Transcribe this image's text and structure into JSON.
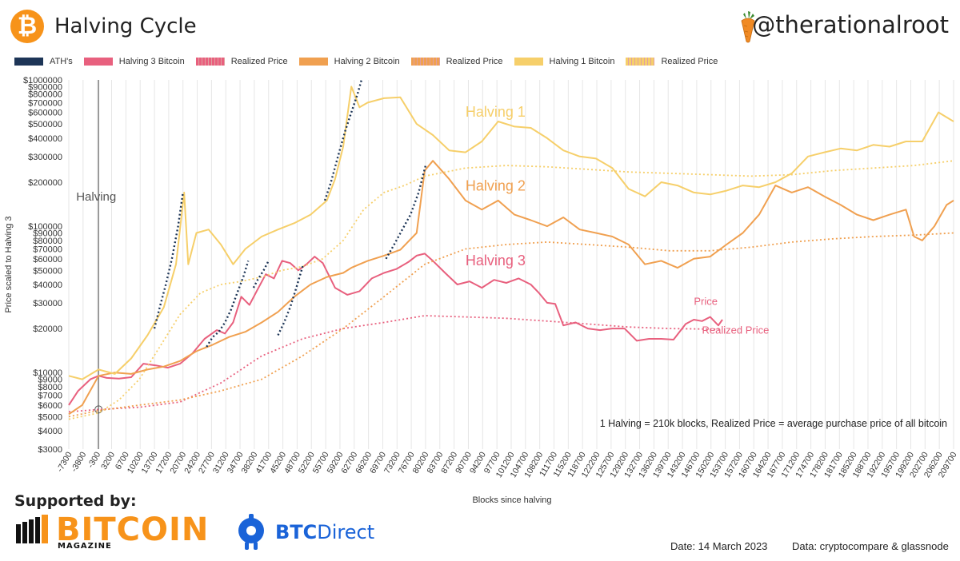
{
  "header": {
    "title": "Halving Cycle",
    "handle": "@therationalroot",
    "logo_symbol": "₿"
  },
  "legend": [
    {
      "label": "ATH's",
      "color": "#1d3557"
    },
    {
      "label": "Halving 3 Bitcoin",
      "color": "#e8607e"
    },
    {
      "label": "Realized Price",
      "color": "#e8607e",
      "dotted": true
    },
    {
      "label": "Halving 2 Bitcoin",
      "color": "#f0a050"
    },
    {
      "label": "Realized Price",
      "color": "#f0a050",
      "dotted": true
    },
    {
      "label": "Halving 1 Bitcoin",
      "color": "#f6cf6a"
    },
    {
      "label": "Realized Price",
      "color": "#f6cf6a",
      "dotted": true
    }
  ],
  "chart_data": {
    "type": "line",
    "title": "Halving Cycle",
    "xlabel": "Blocks since halving",
    "ylabel": "Price scaled to Halving 3",
    "yscale": "log",
    "ylim": [
      3000,
      1000000
    ],
    "xlim": [
      -7300,
      209700
    ],
    "grid": true,
    "y_ticks": [
      3000,
      4000,
      5000,
      6000,
      7000,
      8000,
      9000,
      10000,
      20000,
      30000,
      40000,
      50000,
      60000,
      70000,
      80000,
      90000,
      100000,
      200000,
      300000,
      400000,
      500000,
      600000,
      700000,
      800000,
      900000,
      1000000
    ],
    "y_tick_labels": [
      "$3000",
      "$4000",
      "$5000",
      "$6000",
      "$7000",
      "$8000",
      "$9000",
      "$10000",
      "$20000",
      "$30000",
      "$40000",
      "$50000",
      "$60000",
      "$70000",
      "$80000",
      "$90000",
      "$100000",
      "$200000",
      "$300000",
      "$400000",
      "$500000",
      "$600000",
      "$700000",
      "$800000",
      "$900000",
      "$1000000"
    ],
    "x_ticks": [
      -7300,
      -3800,
      -300,
      3200,
      6700,
      10200,
      13700,
      17200,
      20700,
      24200,
      27700,
      31200,
      34700,
      38200,
      41700,
      45200,
      48700,
      52200,
      55700,
      59200,
      62700,
      66200,
      69700,
      73200,
      76700,
      80200,
      83700,
      87200,
      90700,
      94200,
      97700,
      101200,
      104700,
      108200,
      111700,
      115200,
      118700,
      122200,
      125700,
      129200,
      132700,
      136200,
      139700,
      143200,
      146700,
      150200,
      153700,
      157200,
      160700,
      164200,
      167700,
      171200,
      174700,
      178200,
      181700,
      185200,
      188700,
      192200,
      195700,
      199200,
      202700,
      206200,
      209700
    ],
    "x_tick_labels": [
      "-7300",
      "-3800",
      "-300",
      "3200",
      "6700",
      "10200",
      "13700",
      "17200",
      "20700",
      "24200",
      "27700",
      "31200",
      "34700",
      "38200",
      "41700",
      "45200",
      "48700",
      "52200",
      "55700",
      "59200",
      "62700",
      "66200",
      "69700",
      "73200",
      "76700",
      "80200",
      "83700",
      "87200",
      "90700",
      "94200",
      "97700",
      "101200",
      "104700",
      "108200",
      "111700",
      "115200",
      "118700",
      "122200",
      "125700",
      "129200",
      "132700",
      "136200",
      "139700",
      "143200",
      "146700",
      "150200",
      "153700",
      "157200",
      "160700",
      "164200",
      "167700",
      "171200",
      "174700",
      "178200",
      "181700",
      "185200",
      "188700",
      "192200",
      "195700",
      "199200",
      "202700",
      "206200",
      "209700"
    ],
    "halving_marker": {
      "x": 0,
      "label": "Halving",
      "price": 5600
    },
    "series": [
      {
        "name": "Halving 3 Bitcoin",
        "color": "#e8607e",
        "style": "solid",
        "x": [
          -7300,
          -5000,
          -2000,
          0,
          2000,
          5000,
          8000,
          11000,
          14000,
          17000,
          20000,
          23000,
          26000,
          29000,
          31000,
          33000,
          35000,
          37000,
          39000,
          41000,
          43000,
          45000,
          47000,
          49000,
          51000,
          53000,
          55000,
          58000,
          61000,
          64000,
          67000,
          70000,
          73000,
          76000,
          78000,
          80000,
          82000,
          85000,
          88000,
          91000,
          94000,
          97000,
          100000,
          103000,
          106000,
          108000,
          110000,
          112000,
          114000,
          117000,
          120000,
          123000,
          126000,
          129000,
          132000,
          135000,
          138000,
          141000,
          144000,
          146000,
          148000,
          150000,
          152000,
          153000
        ],
        "values": [
          6000,
          7500,
          9000,
          9500,
          9200,
          9100,
          9300,
          11500,
          11200,
          10800,
          11500,
          13500,
          17000,
          19500,
          18500,
          22000,
          33000,
          29000,
          37000,
          47000,
          44000,
          58000,
          56000,
          50000,
          55000,
          62000,
          56000,
          38000,
          34000,
          36000,
          44000,
          48000,
          51000,
          57000,
          63000,
          65000,
          58000,
          48000,
          40000,
          42000,
          38000,
          43000,
          41000,
          44000,
          40000,
          35000,
          30000,
          29500,
          21000,
          22000,
          20000,
          19500,
          20000,
          20000,
          16500,
          17000,
          17000,
          16800,
          21500,
          23000,
          22500,
          24000,
          21000,
          23000
        ]
      },
      {
        "name": "Realized Price (H3)",
        "color": "#e8607e",
        "style": "dotted",
        "x": [
          -7300,
          0,
          10000,
          20000,
          30000,
          40000,
          50000,
          60000,
          70000,
          80000,
          90000,
          100000,
          110000,
          120000,
          130000,
          140000,
          150000,
          153000
        ],
        "values": [
          5400,
          5600,
          5800,
          6300,
          8500,
          13000,
          17000,
          20000,
          22000,
          24500,
          24000,
          23500,
          22500,
          21500,
          20500,
          20000,
          19800,
          19800
        ]
      },
      {
        "name": "Halving 2 Bitcoin",
        "color": "#f0a050",
        "style": "solid",
        "x": [
          -7300,
          -4000,
          0,
          4000,
          8000,
          12000,
          16000,
          20000,
          24000,
          28000,
          32000,
          36000,
          40000,
          44000,
          48000,
          52000,
          56000,
          60000,
          62000,
          64000,
          66000,
          70000,
          74000,
          78000,
          80000,
          82000,
          86000,
          90000,
          94000,
          98000,
          102000,
          106000,
          110000,
          114000,
          118000,
          122000,
          126000,
          130000,
          134000,
          138000,
          142000,
          146000,
          150000,
          154000,
          158000,
          162000,
          166000,
          170000,
          174000,
          178000,
          182000,
          186000,
          190000,
          194000,
          198000,
          200000,
          202000,
          205000,
          208000,
          209700
        ],
        "values": [
          5200,
          6000,
          9500,
          10000,
          9800,
          10500,
          11000,
          12000,
          14000,
          15500,
          17500,
          19000,
          22000,
          26000,
          33000,
          40000,
          45000,
          48000,
          52000,
          55000,
          58000,
          63000,
          69000,
          90000,
          240000,
          280000,
          210000,
          150000,
          130000,
          150000,
          120000,
          110000,
          100000,
          115000,
          95000,
          90000,
          85000,
          75000,
          55000,
          58000,
          52000,
          60000,
          62000,
          75000,
          90000,
          120000,
          190000,
          170000,
          185000,
          160000,
          140000,
          120000,
          110000,
          120000,
          130000,
          85000,
          80000,
          100000,
          140000,
          150000
        ]
      },
      {
        "name": "Realized Price (H2)",
        "color": "#f0a050",
        "style": "dotted",
        "x": [
          -7300,
          0,
          10000,
          20000,
          30000,
          40000,
          50000,
          60000,
          70000,
          80000,
          90000,
          100000,
          110000,
          120000,
          130000,
          140000,
          150000,
          160000,
          170000,
          180000,
          190000,
          200000,
          209700
        ],
        "values": [
          5000,
          5500,
          6000,
          6500,
          7500,
          9000,
          13000,
          20000,
          33000,
          55000,
          70000,
          75000,
          78000,
          75000,
          72000,
          68000,
          68000,
          72000,
          78000,
          82000,
          85000,
          87000,
          90000
        ]
      },
      {
        "name": "Halving 1 Bitcoin",
        "color": "#f6cf6a",
        "style": "solid",
        "x": [
          -7300,
          -4000,
          0,
          4000,
          8000,
          12000,
          16000,
          19000,
          21000,
          22000,
          24000,
          27000,
          30000,
          33000,
          36000,
          40000,
          44000,
          48000,
          52000,
          56000,
          58000,
          60000,
          62000,
          64000,
          66000,
          70000,
          74000,
          78000,
          82000,
          86000,
          90000,
          94000,
          98000,
          102000,
          106000,
          110000,
          114000,
          118000,
          122000,
          126000,
          130000,
          134000,
          138000,
          142000,
          146000,
          150000,
          154000,
          158000,
          162000,
          166000,
          170000,
          174000,
          178000,
          182000,
          186000,
          190000,
          194000,
          198000,
          202000,
          206000,
          209700
        ],
        "values": [
          9500,
          9000,
          10500,
          9800,
          12500,
          18000,
          28000,
          55000,
          170000,
          55000,
          90000,
          95000,
          75000,
          55000,
          70000,
          85000,
          95000,
          105000,
          120000,
          150000,
          210000,
          350000,
          900000,
          650000,
          700000,
          750000,
          760000,
          500000,
          420000,
          330000,
          320000,
          380000,
          520000,
          480000,
          470000,
          400000,
          330000,
          300000,
          290000,
          250000,
          180000,
          160000,
          200000,
          190000,
          170000,
          165000,
          175000,
          190000,
          185000,
          200000,
          230000,
          300000,
          320000,
          340000,
          330000,
          360000,
          350000,
          380000,
          380000,
          600000,
          520000
        ]
      },
      {
        "name": "Realized Price (H1)",
        "color": "#f6cf6a",
        "style": "dotted",
        "x": [
          -7300,
          0,
          5000,
          10000,
          15000,
          20000,
          25000,
          30000,
          35000,
          40000,
          45000,
          50000,
          55000,
          60000,
          65000,
          70000,
          75000,
          80000,
          90000,
          100000,
          110000,
          120000,
          130000,
          140000,
          150000,
          160000,
          170000,
          180000,
          190000,
          200000,
          209700
        ],
        "values": [
          4800,
          5300,
          6500,
          9000,
          15000,
          25000,
          35000,
          40000,
          42000,
          45000,
          50000,
          53000,
          60000,
          80000,
          130000,
          170000,
          190000,
          220000,
          250000,
          260000,
          255000,
          245000,
          235000,
          230000,
          225000,
          220000,
          225000,
          240000,
          250000,
          260000,
          280000
        ]
      }
    ],
    "ath_segments": [
      {
        "x": [
          13700,
          15000,
          16500,
          18000,
          19500,
          20700
        ],
        "values": [
          20000,
          28000,
          40000,
          60000,
          100000,
          170000
        ]
      },
      {
        "x": [
          26500,
          28000,
          29500,
          31000,
          32500,
          34000,
          35500,
          36700
        ],
        "values": [
          15000,
          17500,
          19000,
          22000,
          27000,
          35000,
          45000,
          58000
        ]
      },
      {
        "x": [
          38000,
          39000,
          40500,
          41700
        ],
        "values": [
          38000,
          43000,
          50000,
          58000
        ]
      },
      {
        "x": [
          44000,
          45500,
          47000,
          48500,
          50200
        ],
        "values": [
          18000,
          22000,
          28000,
          38000,
          55000
        ]
      },
      {
        "x": [
          55500,
          57000,
          59000,
          60500,
          62000,
          63500,
          64500
        ],
        "values": [
          150000,
          200000,
          320000,
          450000,
          600000,
          800000,
          1000000
        ]
      },
      {
        "x": [
          70500,
          72500,
          74500,
          76500,
          78500,
          80200
        ],
        "values": [
          60000,
          75000,
          95000,
          120000,
          170000,
          260000
        ]
      }
    ],
    "annotations": [
      {
        "text": "Halving 1",
        "color": "#f6cf6a",
        "x": 90000,
        "y": 560000
      },
      {
        "text": "Halving 2",
        "color": "#f0a050",
        "x": 90000,
        "y": 175000
      },
      {
        "text": "Halving 3",
        "color": "#e8607e",
        "x": 90000,
        "y": 54000
      },
      {
        "text": "Price",
        "color": "#e8607e",
        "x": 146000,
        "y": 29000
      },
      {
        "text": "Realized Price",
        "color": "#e8607e",
        "x": 148000,
        "y": 18500
      }
    ],
    "footnote": "1 Halving = 210k blocks,  Realized Price = average purchase price of all bitcoin"
  },
  "footer": {
    "supported_by": "Supported by:",
    "sponsor1_name": "BITCOIN",
    "sponsor1_sub": "MAGAZINE",
    "sponsor2_name_bold": "BTC",
    "sponsor2_name": "Direct",
    "date": "Date: 14 March 2023",
    "source": "Data: cryptocompare & glassnode"
  }
}
